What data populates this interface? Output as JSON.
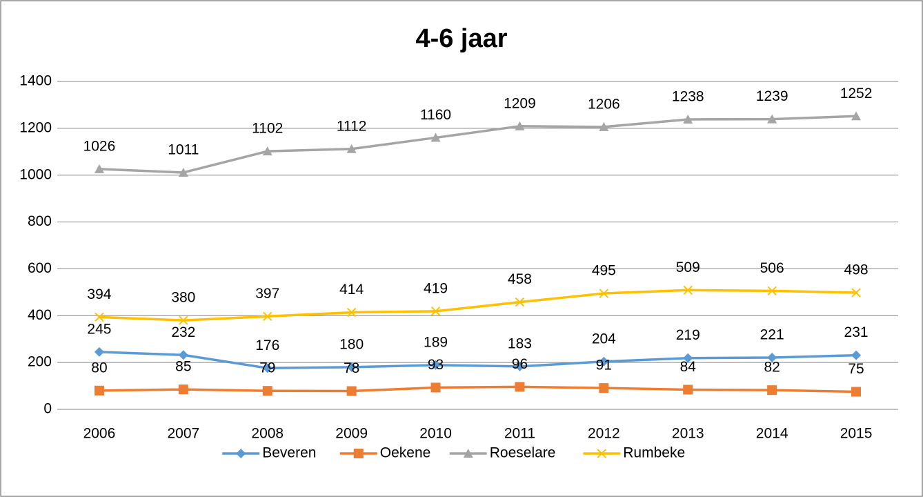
{
  "chart_data": {
    "type": "line",
    "title": "4-6 jaar",
    "categories": [
      "2006",
      "2007",
      "2008",
      "2009",
      "2010",
      "2011",
      "2012",
      "2013",
      "2014",
      "2015"
    ],
    "series": [
      {
        "name": "Beveren",
        "color": "#5b9bd5",
        "marker": "diamond",
        "values": [
          245,
          232,
          176,
          180,
          189,
          183,
          204,
          219,
          221,
          231
        ]
      },
      {
        "name": "Oekene",
        "color": "#ed7d31",
        "marker": "square",
        "values": [
          80,
          85,
          79,
          78,
          93,
          96,
          91,
          84,
          82,
          75
        ]
      },
      {
        "name": "Roeselare",
        "color": "#a5a5a5",
        "marker": "triangle",
        "values": [
          1026,
          1011,
          1102,
          1112,
          1160,
          1209,
          1206,
          1238,
          1239,
          1252
        ]
      },
      {
        "name": "Rumbeke",
        "color": "#ffc000",
        "marker": "x",
        "values": [
          394,
          380,
          397,
          414,
          419,
          458,
          495,
          509,
          506,
          498
        ]
      }
    ],
    "ylim": [
      0,
      1400
    ],
    "yticks": [
      0,
      200,
      400,
      600,
      800,
      1000,
      1200,
      1400
    ],
    "grid": true,
    "legend": "bottom",
    "data_labels": true
  }
}
